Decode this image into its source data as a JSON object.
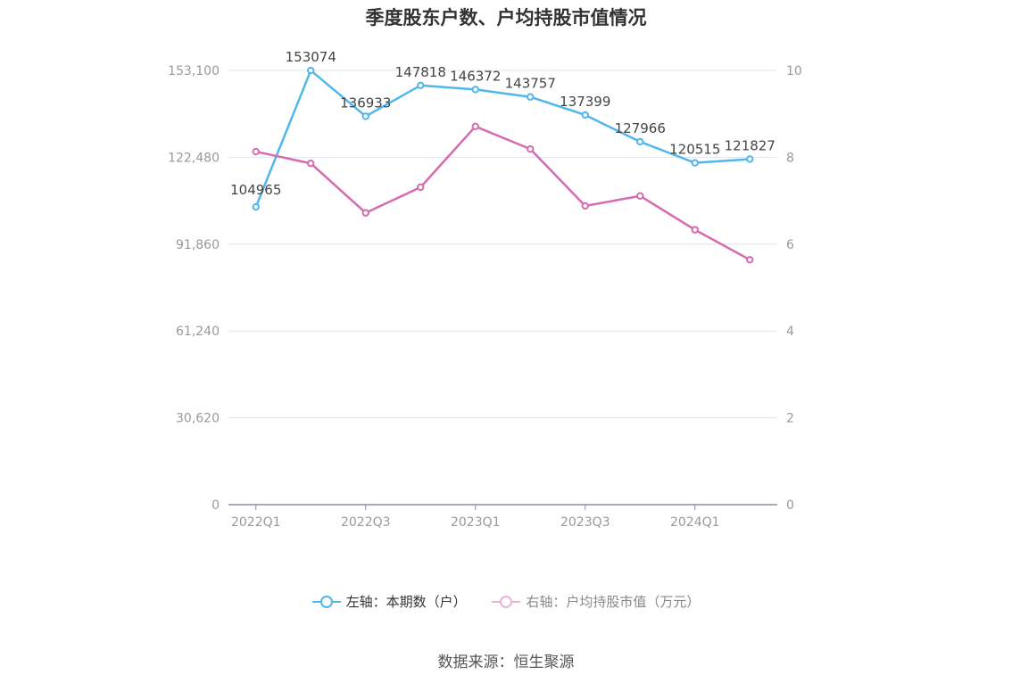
{
  "chart_data": {
    "type": "line",
    "title": "季度股东户数、户均持股市值情况",
    "categories": [
      "2022Q1",
      "2022Q2",
      "2022Q3",
      "2022Q4",
      "2023Q1",
      "2023Q2",
      "2023Q3",
      "2023Q4",
      "2024Q1",
      "2024Q2"
    ],
    "x_tick_labels": [
      "2022Q1",
      "2022Q3",
      "2023Q1",
      "2023Q3",
      "2024Q1"
    ],
    "left_axis": {
      "ylim": [
        0,
        153100
      ],
      "ticks": [
        "0",
        "30,620",
        "61,240",
        "91,860",
        "122,480",
        "153,100"
      ]
    },
    "right_axis": {
      "ylim": [
        0,
        10
      ],
      "ticks": [
        "0",
        "2",
        "4",
        "6",
        "8",
        "10"
      ]
    },
    "series": [
      {
        "name": "左轴：本期数（户）",
        "axis": "left",
        "color": "#4fb7ec",
        "values": [
          104965,
          153074,
          136933,
          147818,
          146372,
          143757,
          137399,
          127966,
          120515,
          121827
        ],
        "labels": [
          "104965",
          "153074",
          "136933",
          "147818",
          "146372",
          "143757",
          "137399",
          "127966",
          "120515",
          "121827"
        ]
      },
      {
        "name": "右轴：户均持股市值（万元）",
        "axis": "right",
        "color": "#d66bae",
        "values": [
          8.13,
          7.86,
          6.72,
          7.31,
          8.71,
          8.19,
          6.88,
          7.11,
          6.33,
          5.64
        ]
      }
    ],
    "grid": true,
    "legend_position": "bottom"
  },
  "source": "数据来源：恒生聚源"
}
